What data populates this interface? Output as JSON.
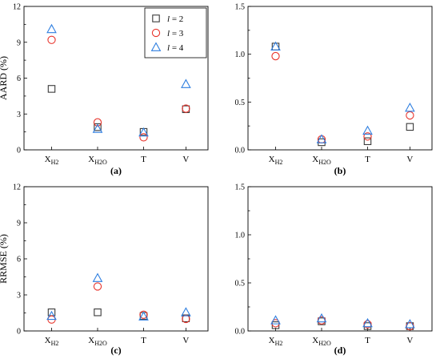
{
  "chart_data": [
    {
      "type": "scatter",
      "panel_label": "(a)",
      "ylabel": "AARD (%)",
      "ylim": [
        0,
        12
      ],
      "yticks": [
        "0",
        "3",
        "6",
        "9",
        "12"
      ],
      "categories": [
        {
          "base": "X",
          "sub": "H2"
        },
        {
          "base": "X",
          "sub": "H2O"
        },
        {
          "base": "T",
          "sub": ""
        },
        {
          "base": "V",
          "sub": ""
        }
      ],
      "legend": {
        "placement": "top-right"
      },
      "series": [
        {
          "name": "l = 2",
          "marker": "square",
          "values": [
            5.1,
            1.9,
            1.5,
            3.4
          ]
        },
        {
          "name": "l = 3",
          "marker": "circle",
          "values": [
            9.2,
            2.3,
            1.05,
            3.45
          ]
        },
        {
          "name": "l = 4",
          "marker": "triangle",
          "values": [
            10.1,
            1.75,
            1.45,
            5.5
          ]
        }
      ]
    },
    {
      "type": "scatter",
      "panel_label": "(b)",
      "ylabel": "",
      "ylim": [
        0,
        1.5
      ],
      "yticks": [
        "0.0",
        "0.5",
        "1.0",
        "1.5"
      ],
      "categories": [
        {
          "base": "X",
          "sub": "H2"
        },
        {
          "base": "X",
          "sub": "H2O"
        },
        {
          "base": "T",
          "sub": ""
        },
        {
          "base": "V",
          "sub": ""
        }
      ],
      "series": [
        {
          "name": "l = 2",
          "marker": "square",
          "values": [
            1.08,
            0.08,
            0.09,
            0.24
          ]
        },
        {
          "name": "l = 3",
          "marker": "circle",
          "values": [
            0.98,
            0.11,
            0.14,
            0.36
          ]
        },
        {
          "name": "l = 4",
          "marker": "triangle",
          "values": [
            1.08,
            0.11,
            0.2,
            0.44
          ]
        }
      ]
    },
    {
      "type": "scatter",
      "panel_label": "(c)",
      "ylabel": "RRMSE (%)",
      "ylim": [
        0,
        12
      ],
      "yticks": [
        "0",
        "3",
        "6",
        "9",
        "12"
      ],
      "categories": [
        {
          "base": "X",
          "sub": "H2"
        },
        {
          "base": "X",
          "sub": "H2O"
        },
        {
          "base": "T",
          "sub": ""
        },
        {
          "base": "V",
          "sub": ""
        }
      ],
      "series": [
        {
          "name": "l = 2",
          "marker": "square",
          "values": [
            1.55,
            1.55,
            1.25,
            1.05
          ]
        },
        {
          "name": "l = 3",
          "marker": "circle",
          "values": [
            0.95,
            3.7,
            1.35,
            1.0
          ]
        },
        {
          "name": "l = 4",
          "marker": "triangle",
          "values": [
            1.25,
            4.4,
            1.2,
            1.55
          ]
        }
      ]
    },
    {
      "type": "scatter",
      "panel_label": "(d)",
      "ylabel": "",
      "ylim": [
        0,
        1.5
      ],
      "yticks": [
        "0.0",
        "0.5",
        "1.0",
        "1.5"
      ],
      "categories": [
        {
          "base": "X",
          "sub": "H2"
        },
        {
          "base": "X",
          "sub": "H2O"
        },
        {
          "base": "T",
          "sub": ""
        },
        {
          "base": "V",
          "sub": ""
        }
      ],
      "series": [
        {
          "name": "l = 2",
          "marker": "square",
          "values": [
            0.06,
            0.1,
            0.05,
            0.05
          ]
        },
        {
          "name": "l = 3",
          "marker": "circle",
          "values": [
            0.08,
            0.11,
            0.07,
            0.05
          ]
        },
        {
          "name": "l = 4",
          "marker": "triangle",
          "values": [
            0.11,
            0.13,
            0.08,
            0.07
          ]
        }
      ]
    }
  ],
  "colors": {
    "l = 2": "#3a3a3a",
    "l = 3": "#e8342c",
    "l = 4": "#2f7fe0"
  }
}
